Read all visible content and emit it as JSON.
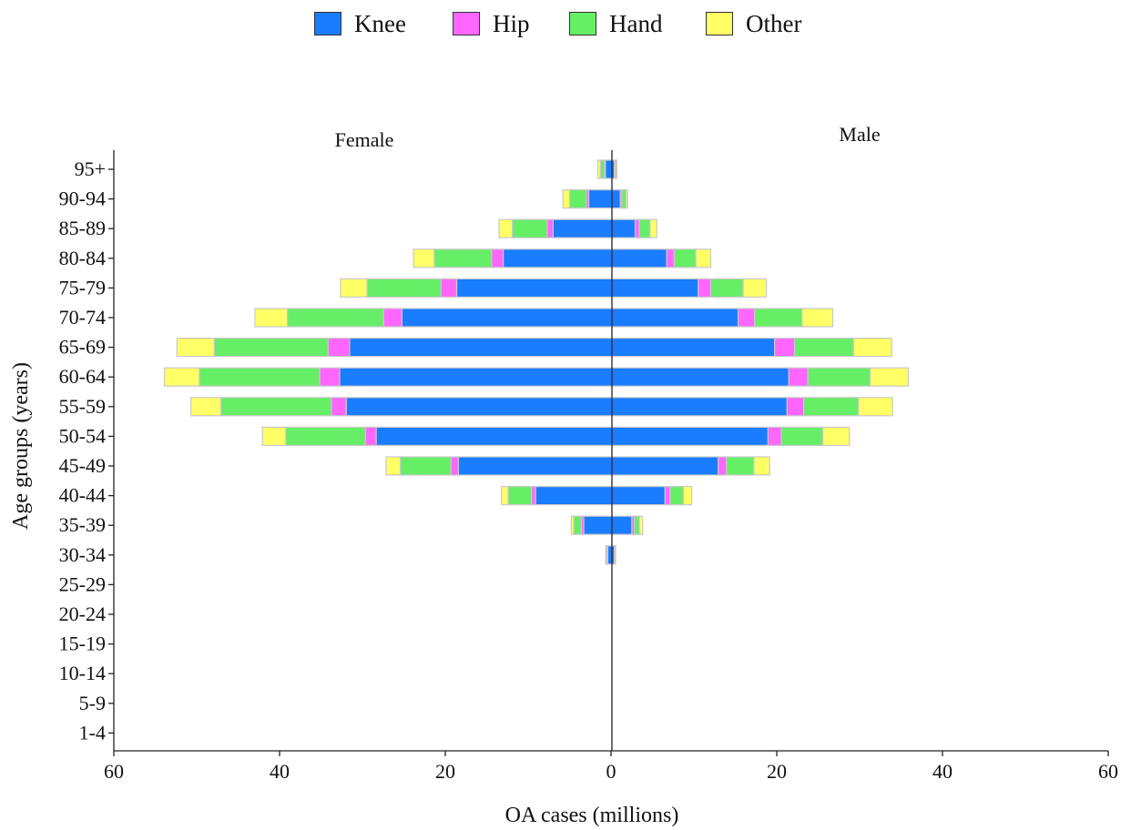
{
  "chart_data": {
    "type": "bar",
    "orientation": "horizontal",
    "style": "population-pyramid, stacked",
    "xlabel": "OA cases (millions)",
    "ylabel": "Age groups (years)",
    "xlim": [
      -60,
      60
    ],
    "x_ticks": [
      60,
      40,
      20,
      0,
      20,
      40,
      60
    ],
    "grid": false,
    "legend_position": "top",
    "panels": {
      "left": "Female",
      "right": "Male"
    },
    "categories": [
      "95+",
      "90-94",
      "85-89",
      "80-84",
      "75-79",
      "70-74",
      "65-69",
      "60-64",
      "55-59",
      "50-54",
      "45-49",
      "40-44",
      "35-39",
      "30-34",
      "25-29",
      "20-24",
      "15-19",
      "10-14",
      "5-9",
      "1-4"
    ],
    "series": [
      {
        "name": "Knee",
        "color": "#1a7cff",
        "female": [
          0.8,
          2.8,
          7.1,
          13.1,
          18.7,
          25.3,
          31.6,
          32.8,
          32.0,
          28.4,
          18.5,
          9.2,
          3.4,
          0.5,
          0,
          0,
          0,
          0,
          0,
          0
        ],
        "male": [
          0.3,
          1.0,
          2.8,
          6.6,
          10.4,
          15.2,
          19.6,
          21.3,
          21.1,
          18.8,
          12.8,
          6.4,
          2.4,
          0.3,
          0,
          0,
          0,
          0,
          0,
          0
        ]
      },
      {
        "name": "Hip",
        "color": "#ff66ff",
        "female": [
          0.1,
          0.3,
          0.7,
          1.4,
          1.9,
          2.2,
          2.6,
          2.4,
          1.8,
          1.3,
          0.9,
          0.5,
          0.3,
          0.1,
          0,
          0,
          0,
          0,
          0,
          0
        ],
        "male": [
          0.05,
          0.2,
          0.5,
          0.9,
          1.5,
          2.0,
          2.4,
          2.3,
          2.0,
          1.6,
          1.0,
          0.6,
          0.3,
          0.05,
          0,
          0,
          0,
          0,
          0,
          0
        ]
      },
      {
        "name": "Hand",
        "color": "#66ee66",
        "female": [
          0.5,
          2.0,
          4.2,
          6.9,
          8.9,
          11.6,
          13.7,
          14.5,
          13.3,
          9.6,
          6.1,
          2.8,
          0.9,
          0.1,
          0,
          0,
          0,
          0,
          0,
          0
        ],
        "male": [
          0.15,
          0.5,
          1.3,
          2.6,
          3.9,
          5.7,
          7.1,
          7.5,
          6.6,
          5.0,
          3.3,
          1.6,
          0.6,
          0.05,
          0,
          0,
          0,
          0,
          0,
          0
        ]
      },
      {
        "name": "Other",
        "color": "#ffff66",
        "female": [
          0.3,
          0.8,
          1.6,
          2.5,
          3.2,
          3.9,
          4.5,
          4.2,
          3.6,
          2.8,
          1.7,
          0.8,
          0.3,
          0.05,
          0,
          0,
          0,
          0,
          0,
          0
        ],
        "male": [
          0.1,
          0.2,
          0.8,
          1.8,
          2.8,
          3.7,
          4.6,
          4.6,
          4.1,
          3.2,
          1.9,
          1.0,
          0.4,
          0.05,
          0,
          0,
          0,
          0,
          0,
          0
        ]
      }
    ]
  }
}
